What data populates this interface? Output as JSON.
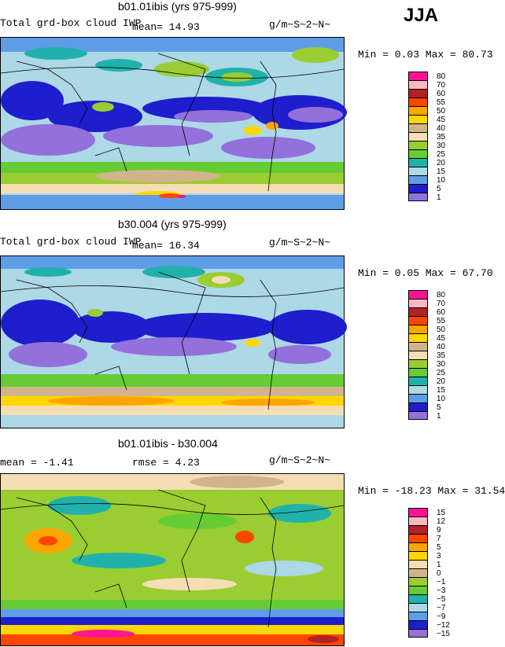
{
  "season": "JJA",
  "chart_data": [
    {
      "type": "heatmap",
      "title": "b01.01ibis (yrs 975-999)",
      "field_label": "Total grd-box cloud IWP",
      "stat_text": "mean=   14.93",
      "units": "g/m~S~2~N~",
      "minmax_text": "Min =    0.03 Max =  80.73",
      "legend_levels": [
        "80",
        "70",
        "60",
        "55",
        "50",
        "45",
        "40",
        "35",
        "30",
        "25",
        "20",
        "15",
        "10",
        "5",
        "1"
      ],
      "legend_colors": [
        "#ff1493",
        "#ffb6c1",
        "#b22222",
        "#ff4500",
        "#ffa500",
        "#ffd700",
        "#d2b48c",
        "#f5deb3",
        "#9acd32",
        "#66cc33",
        "#20b2aa",
        "#add8e6",
        "#5f9ee6",
        "#1e1ecd",
        "#9370db"
      ]
    },
    {
      "type": "heatmap",
      "title": "b30.004 (yrs 975-999)",
      "field_label": "Total grd-box cloud IWP",
      "stat_text": "mean=   16.34",
      "units": "g/m~S~2~N~",
      "minmax_text": "Min =    0.05 Max =  67.70",
      "legend_levels": [
        "80",
        "70",
        "60",
        "55",
        "50",
        "45",
        "40",
        "35",
        "30",
        "25",
        "20",
        "15",
        "10",
        "5",
        "1"
      ],
      "legend_colors": [
        "#ff1493",
        "#ffb6c1",
        "#b22222",
        "#ff4500",
        "#ffa500",
        "#ffd700",
        "#d2b48c",
        "#f5deb3",
        "#9acd32",
        "#66cc33",
        "#20b2aa",
        "#add8e6",
        "#5f9ee6",
        "#1e1ecd",
        "#9370db"
      ]
    },
    {
      "type": "heatmap",
      "title": "b01.01ibis - b30.004",
      "stat_text": "mean =   -1.41",
      "rmse_text": "rmse =    4.23",
      "units": "g/m~S~2~N~",
      "minmax_text": "Min = -18.23 Max =   31.54",
      "legend_levels": [
        "15",
        "12",
        "9",
        "7",
        "5",
        "3",
        "1",
        "0",
        "−1",
        "−3",
        "−5",
        "−7",
        "−9",
        "−12",
        "−15"
      ],
      "legend_colors": [
        "#ff1493",
        "#ffb6c1",
        "#b22222",
        "#ff4500",
        "#ffa500",
        "#ffd700",
        "#f5deb3",
        "#d2b48c",
        "#9acd32",
        "#66cc33",
        "#20b2aa",
        "#add8e6",
        "#5f9ee6",
        "#1e1ecd",
        "#9370db"
      ]
    }
  ]
}
